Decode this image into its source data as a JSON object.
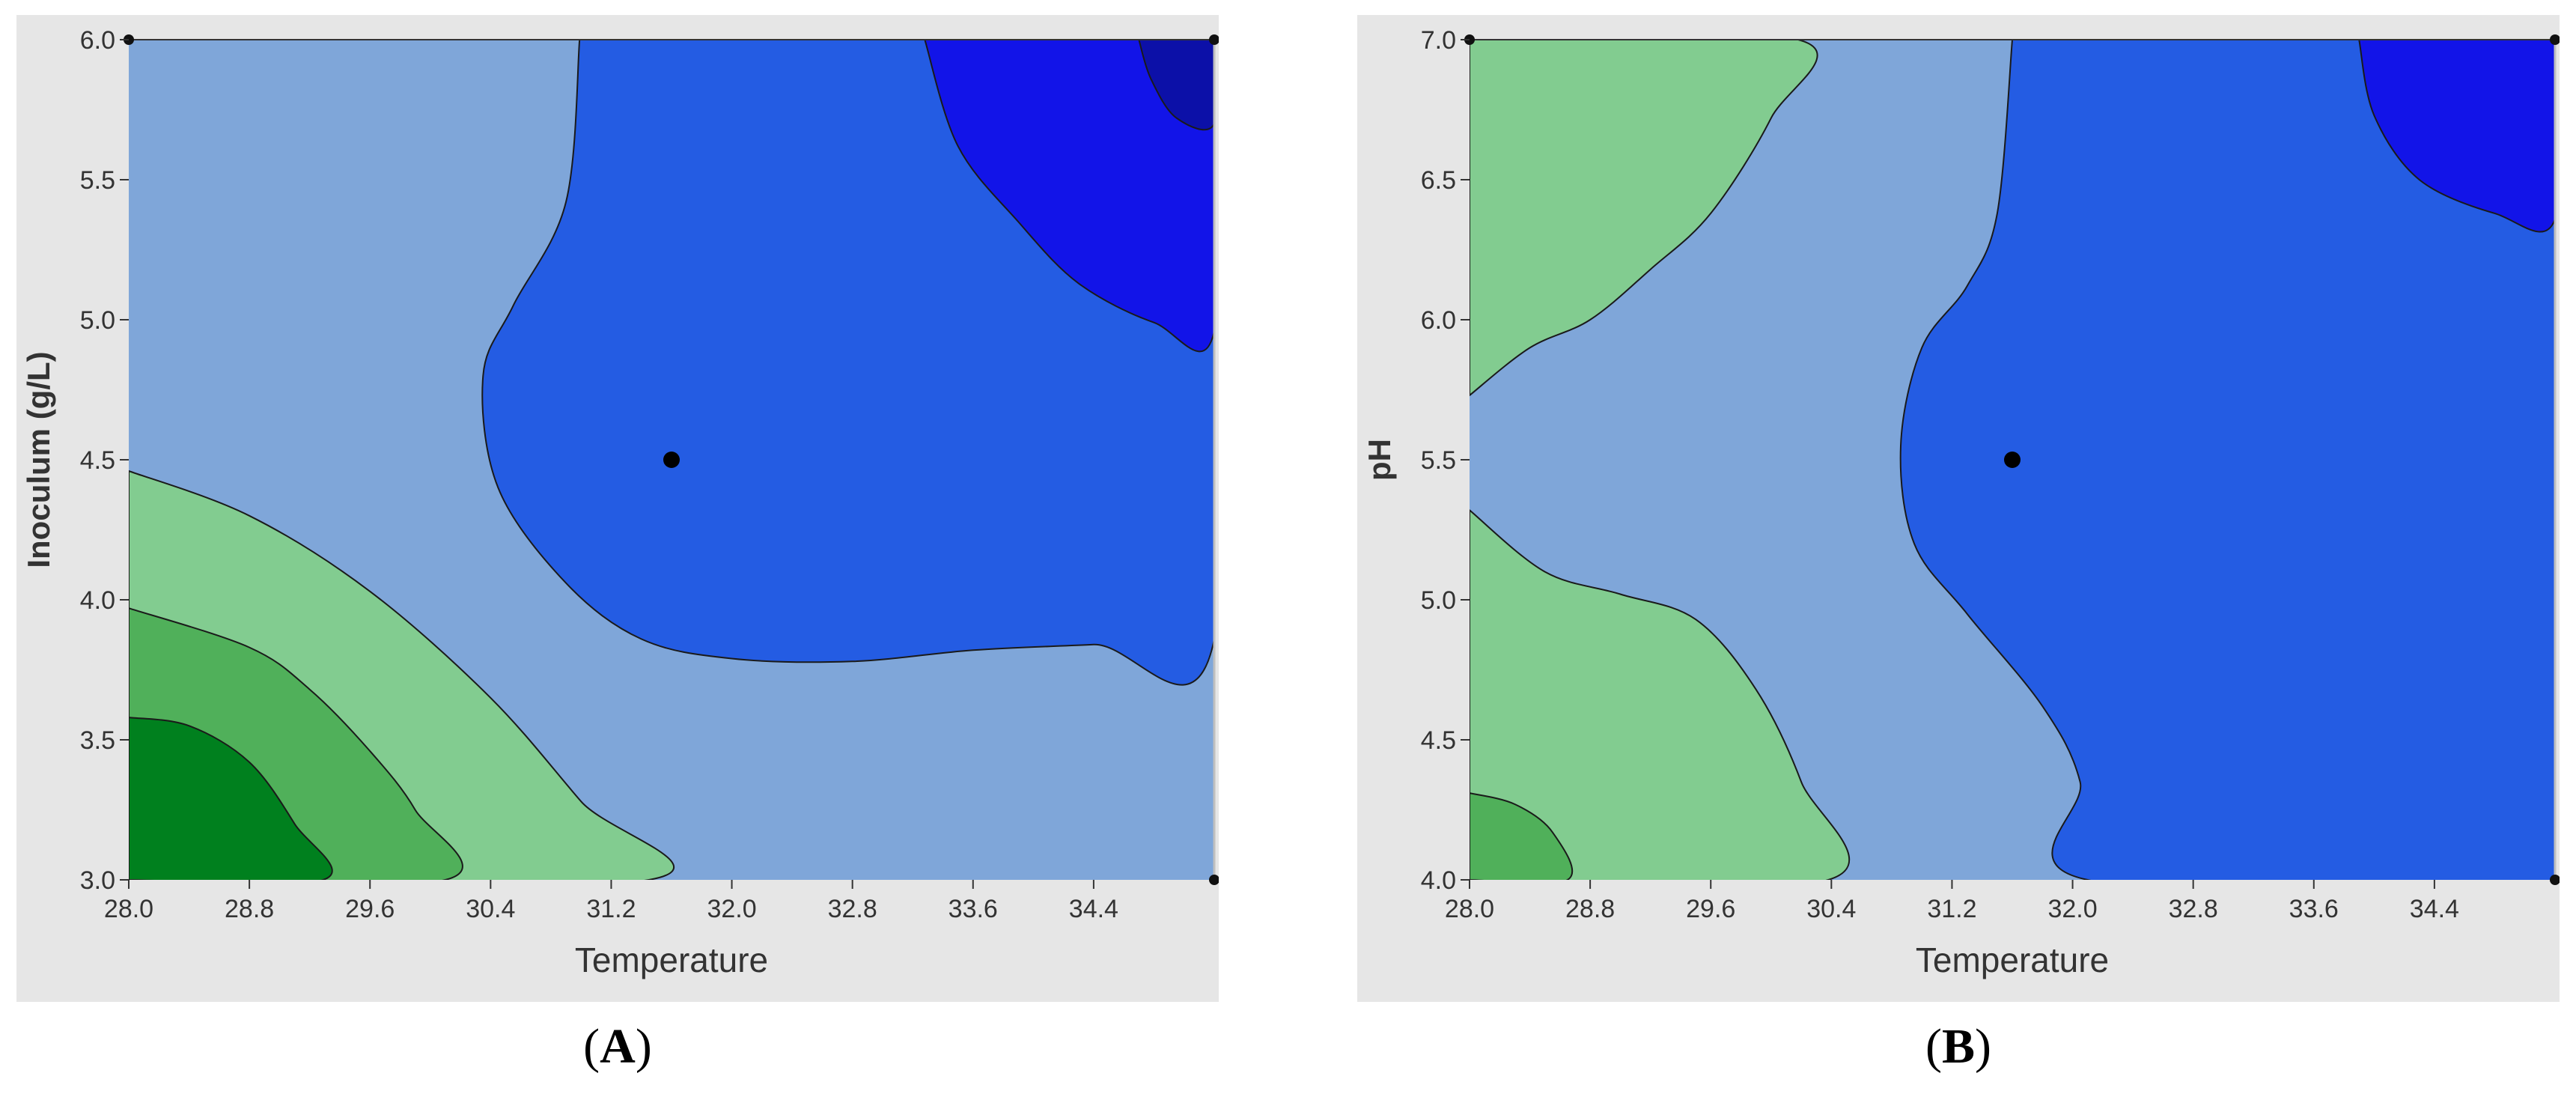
{
  "colors": {
    "frame_bg": "#e6e6e6",
    "dark_green": "#00801e",
    "mid_green": "#50b05a",
    "light_green": "#82cc90",
    "light_blue": "#7fa6d9",
    "mid_blue": "#245ce3",
    "bright_blue": "#1214e8",
    "navy": "#0c10a8"
  },
  "panels": [
    {
      "caption_open": "(",
      "caption_letter": "A",
      "caption_close": ")",
      "xlabel": "Temperature",
      "ylabel": "Inoculum (g/L)"
    },
    {
      "caption_open": "(",
      "caption_letter": "B",
      "caption_close": ")",
      "xlabel": "Temperature",
      "ylabel": "pH"
    }
  ],
  "chart_data": [
    {
      "type": "contour",
      "title": "",
      "xlabel": "Temperature",
      "ylabel": "Inoculum (g/L)",
      "xlim": [
        28.0,
        35.2
      ],
      "ylim": [
        3.0,
        6.0
      ],
      "x_ticks": [
        "28.0",
        "28.8",
        "29.6",
        "30.4",
        "31.2",
        "32.0",
        "32.8",
        "33.6",
        "34.4"
      ],
      "y_ticks": [
        "3.0",
        "3.5",
        "4.0",
        "4.5",
        "5.0",
        "5.5",
        "6.0"
      ],
      "x_tick_values": [
        28.0,
        28.8,
        29.6,
        30.4,
        31.2,
        32.0,
        32.8,
        33.6,
        34.4
      ],
      "y_tick_values": [
        3.0,
        3.5,
        4.0,
        4.5,
        5.0,
        5.5,
        6.0
      ],
      "center_point": {
        "x": 31.6,
        "y": 4.5
      },
      "corner_points": [
        {
          "x": 28.0,
          "y": 6.0
        },
        {
          "x": 35.2,
          "y": 6.0
        },
        {
          "x": 35.2,
          "y": 3.0
        }
      ],
      "regions": [
        {
          "name": "background",
          "color": "light_blue",
          "points": [
            [
              28.0,
              3.0
            ],
            [
              35.2,
              3.0
            ],
            [
              35.2,
              6.0
            ],
            [
              28.0,
              6.0
            ]
          ]
        },
        {
          "name": "light-green-band",
          "color": "light_green",
          "points": [
            [
              28.0,
              3.0
            ],
            [
              31.45,
              3.0
            ],
            [
              31.0,
              3.28
            ],
            [
              30.4,
              3.65
            ],
            [
              29.6,
              4.03
            ],
            [
              28.8,
              4.3
            ],
            [
              28.0,
              4.46
            ]
          ]
        },
        {
          "name": "mid-green-band",
          "color": "mid_green",
          "points": [
            [
              28.0,
              3.0
            ],
            [
              30.1,
              3.0
            ],
            [
              29.9,
              3.25
            ],
            [
              29.6,
              3.46
            ],
            [
              29.2,
              3.68
            ],
            [
              28.8,
              3.83
            ],
            [
              28.0,
              3.97
            ]
          ]
        },
        {
          "name": "dark-green-core",
          "color": "dark_green",
          "points": [
            [
              28.0,
              3.0
            ],
            [
              29.29,
              3.0
            ],
            [
              29.1,
              3.2
            ],
            [
              28.8,
              3.42
            ],
            [
              28.4,
              3.55
            ],
            [
              28.0,
              3.58
            ]
          ]
        },
        {
          "name": "mid-blue-region",
          "color": "mid_blue",
          "points": [
            [
              30.99,
              6.0
            ],
            [
              35.2,
              6.0
            ],
            [
              35.2,
              3.86
            ],
            [
              34.4,
              3.84
            ],
            [
              33.6,
              3.82
            ],
            [
              32.8,
              3.78
            ],
            [
              32.0,
              3.79
            ],
            [
              31.4,
              3.86
            ],
            [
              30.9,
              4.06
            ],
            [
              30.45,
              4.4
            ],
            [
              30.35,
              4.8
            ],
            [
              30.55,
              5.05
            ],
            [
              30.9,
              5.42
            ],
            [
              30.99,
              6.0
            ]
          ]
        },
        {
          "name": "bright-blue-region",
          "color": "bright_blue",
          "points": [
            [
              33.28,
              6.0
            ],
            [
              35.2,
              6.0
            ],
            [
              35.2,
              4.96
            ],
            [
              34.8,
              4.99
            ],
            [
              34.3,
              5.13
            ],
            [
              33.9,
              5.35
            ],
            [
              33.5,
              5.62
            ],
            [
              33.28,
              6.0
            ]
          ]
        },
        {
          "name": "navy-region",
          "color": "navy",
          "points": [
            [
              34.7,
              6.0
            ],
            [
              35.2,
              6.0
            ],
            [
              35.2,
              5.7
            ],
            [
              34.95,
              5.72
            ],
            [
              34.78,
              5.86
            ],
            [
              34.7,
              6.0
            ]
          ]
        }
      ]
    },
    {
      "type": "contour",
      "title": "",
      "xlabel": "Temperature",
      "ylabel": "pH",
      "xlim": [
        28.0,
        35.2
      ],
      "ylim": [
        4.0,
        7.0
      ],
      "x_ticks": [
        "28.0",
        "28.8",
        "29.6",
        "30.4",
        "31.2",
        "32.0",
        "32.8",
        "33.6",
        "34.4"
      ],
      "y_ticks": [
        "4.0",
        "4.5",
        "5.0",
        "5.5",
        "6.0",
        "6.5",
        "7.0"
      ],
      "x_tick_values": [
        28.0,
        28.8,
        29.6,
        30.4,
        31.2,
        32.0,
        32.8,
        33.6,
        34.4
      ],
      "y_tick_values": [
        4.0,
        4.5,
        5.0,
        5.5,
        6.0,
        6.5,
        7.0
      ],
      "center_point": {
        "x": 31.6,
        "y": 5.5
      },
      "corner_points": [
        {
          "x": 28.0,
          "y": 7.0
        },
        {
          "x": 35.2,
          "y": 7.0
        },
        {
          "x": 35.2,
          "y": 4.0
        }
      ],
      "regions": [
        {
          "name": "background",
          "color": "light_blue",
          "points": [
            [
              28.0,
              4.0
            ],
            [
              35.2,
              4.0
            ],
            [
              35.2,
              7.0
            ],
            [
              28.0,
              7.0
            ]
          ]
        },
        {
          "name": "light-green-upper",
          "color": "light_green",
          "points": [
            [
              28.0,
              7.0
            ],
            [
              30.18,
              7.0
            ],
            [
              30.0,
              6.72
            ],
            [
              29.6,
              6.38
            ],
            [
              29.2,
              6.18
            ],
            [
              28.8,
              6.0
            ],
            [
              28.4,
              5.9
            ],
            [
              28.0,
              5.73
            ]
          ]
        },
        {
          "name": "light-green-lower",
          "color": "light_green",
          "points": [
            [
              28.0,
              4.0
            ],
            [
              30.38,
              4.0
            ],
            [
              30.2,
              4.35
            ],
            [
              29.9,
              4.68
            ],
            [
              29.5,
              4.93
            ],
            [
              29.0,
              5.02
            ],
            [
              28.5,
              5.1
            ],
            [
              28.0,
              5.32
            ]
          ]
        },
        {
          "name": "mid-green-core",
          "color": "mid_green",
          "points": [
            [
              28.0,
              4.0
            ],
            [
              28.65,
              4.0
            ],
            [
              28.55,
              4.17
            ],
            [
              28.3,
              4.27
            ],
            [
              28.0,
              4.31
            ]
          ]
        },
        {
          "name": "mid-blue-region",
          "color": "mid_blue",
          "points": [
            [
              31.6,
              7.0
            ],
            [
              35.2,
              7.0
            ],
            [
              35.2,
              4.0
            ],
            [
              32.1,
              4.0
            ],
            [
              32.05,
              4.35
            ],
            [
              31.8,
              4.62
            ],
            [
              31.3,
              4.95
            ],
            [
              30.95,
              5.2
            ],
            [
              30.86,
              5.55
            ],
            [
              31.0,
              5.9
            ],
            [
              31.3,
              6.12
            ],
            [
              31.5,
              6.38
            ],
            [
              31.6,
              7.0
            ]
          ]
        },
        {
          "name": "bright-blue-region",
          "color": "bright_blue",
          "points": [
            [
              33.9,
              7.0
            ],
            [
              35.2,
              7.0
            ],
            [
              35.2,
              6.36
            ],
            [
              34.8,
              6.38
            ],
            [
              34.3,
              6.5
            ],
            [
              34.0,
              6.73
            ],
            [
              33.9,
              7.0
            ]
          ]
        }
      ]
    }
  ]
}
